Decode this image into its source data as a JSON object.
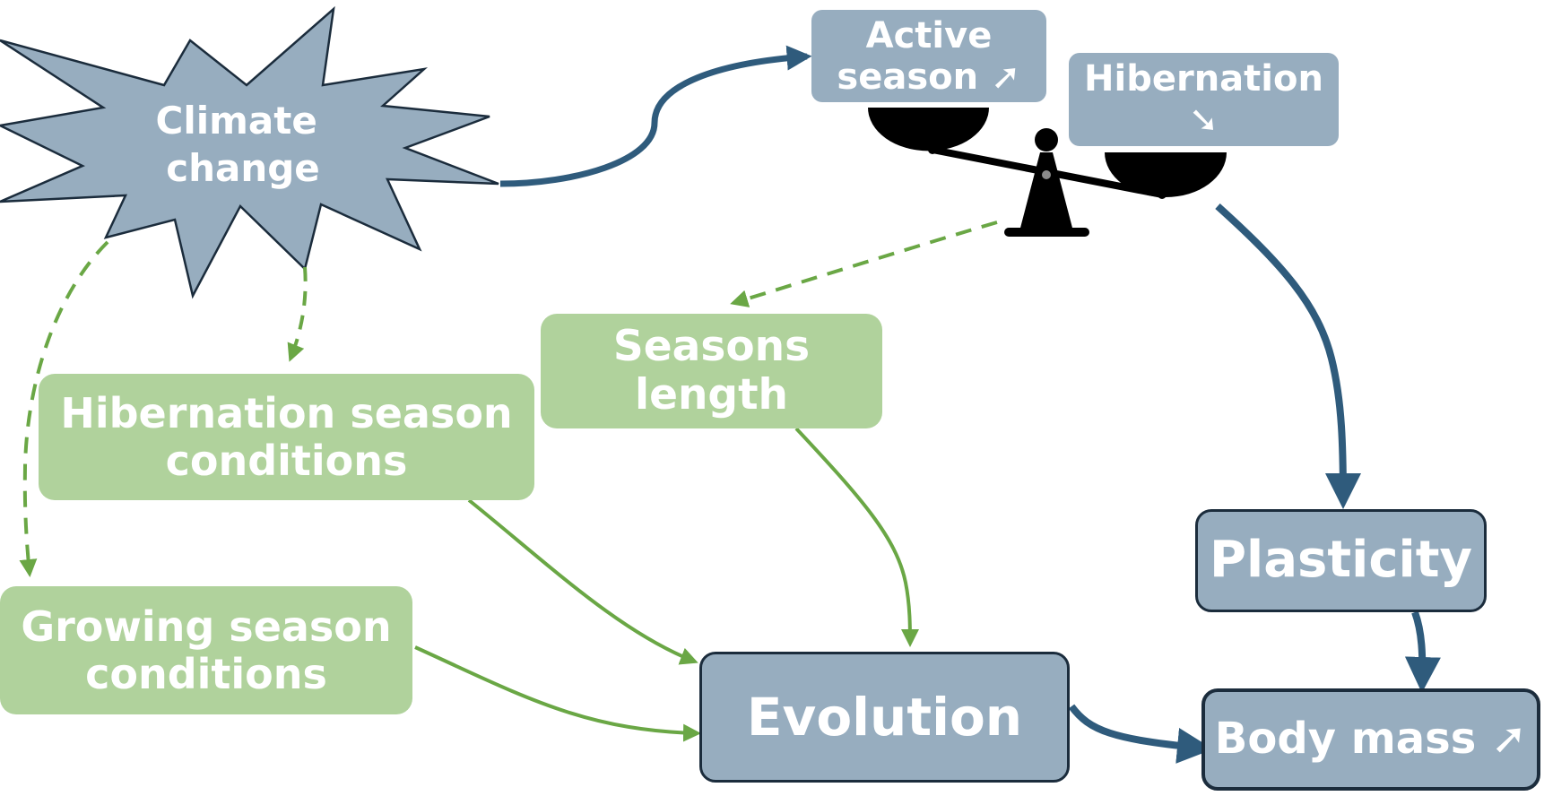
{
  "nodes": {
    "climate_change": "Climate\nchange",
    "active_season": "Active\nseason ➚",
    "hibernation": "Hibernation\n➘",
    "seasons_length": "Seasons\nlength",
    "hibernation_conditions": "Hibernation season\nconditions",
    "growing_conditions": "Growing season\nconditions",
    "plasticity": "Plasticity",
    "evolution": "Evolution",
    "body_mass": "Body mass ➚"
  },
  "colors": {
    "blue_box": "#97adbf",
    "green_box": "#b0d29c",
    "blue_arrow": "#2f5b7c",
    "green_arrow": "#6aa745",
    "dark_outline": "#1b2c3c"
  },
  "icons": {
    "balance": "balance-scale-icon"
  }
}
